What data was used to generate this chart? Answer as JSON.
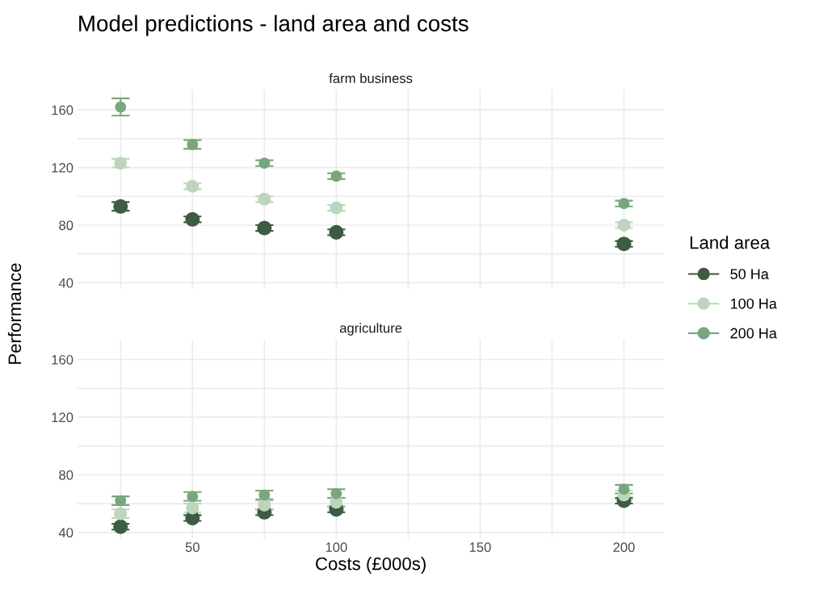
{
  "chart_data": [
    {
      "type": "scatter",
      "title": "Model predictions - land area and costs",
      "subtitle": "farm business",
      "ylabel": "Performance",
      "legend_title": "Land area",
      "legend": "right",
      "marker": "circle",
      "grid": true,
      "tick_labels": "y",
      "x": [
        25,
        50,
        75,
        100,
        200
      ],
      "xlim": [
        10,
        214
      ],
      "xticks": [
        {
          "value": 25,
          "label": null
        },
        50,
        {
          "value": 75,
          "label": null
        },
        100,
        {
          "value": 125,
          "label": null
        },
        150,
        {
          "value": 175,
          "label": null
        },
        200
      ],
      "ylim": [
        36,
        174
      ],
      "yticks": [
        40,
        {
          "value": 60,
          "label": null
        },
        80,
        {
          "value": 100,
          "label": null
        },
        120,
        {
          "value": 140,
          "label": null
        },
        160
      ],
      "series": [
        {
          "name": "50 Ha",
          "color": "#3d5c41",
          "values": [
            93,
            84,
            78,
            75,
            67
          ],
          "errors": [
            3,
            2,
            2,
            2,
            2
          ]
        },
        {
          "name": "100 Ha",
          "color": "#bdd5bd",
          "values": [
            123,
            107,
            98,
            92,
            80
          ],
          "errors": [
            3,
            2,
            2,
            2,
            2
          ]
        },
        {
          "name": "200 Ha",
          "color": "#78a67d",
          "values": [
            162,
            136,
            123,
            114,
            95
          ],
          "errors": [
            6,
            3,
            2,
            2,
            2
          ]
        }
      ]
    },
    {
      "type": "scatter",
      "subtitle": "agriculture",
      "xlabel": "Costs (£000s)",
      "marker": "circle",
      "grid": true,
      "x": [
        25,
        50,
        75,
        100,
        200
      ],
      "xlim": [
        10,
        214
      ],
      "xticks": [
        {
          "value": 25,
          "label": null
        },
        50,
        {
          "value": 75,
          "label": null
        },
        100,
        {
          "value": 125,
          "label": null
        },
        150,
        {
          "value": 175,
          "label": null
        },
        200
      ],
      "ylim": [
        36,
        174
      ],
      "yticks": [
        40,
        {
          "value": 60,
          "label": null
        },
        80,
        {
          "value": 100,
          "label": null
        },
        120,
        {
          "value": 140,
          "label": null
        },
        160
      ],
      "series": [
        {
          "color": "#3d5c41",
          "values": [
            44,
            50,
            54,
            56,
            62
          ],
          "errors": [
            2,
            2,
            2,
            2,
            2
          ]
        },
        {
          "color": "#bdd5bd",
          "values": [
            53,
            57,
            59,
            61,
            66
          ],
          "errors": [
            3,
            3,
            3,
            3,
            3
          ]
        },
        {
          "color": "#78a67d",
          "values": [
            62,
            65,
            66,
            67,
            70
          ],
          "errors": [
            3,
            3,
            3,
            3,
            3
          ]
        }
      ]
    }
  ]
}
